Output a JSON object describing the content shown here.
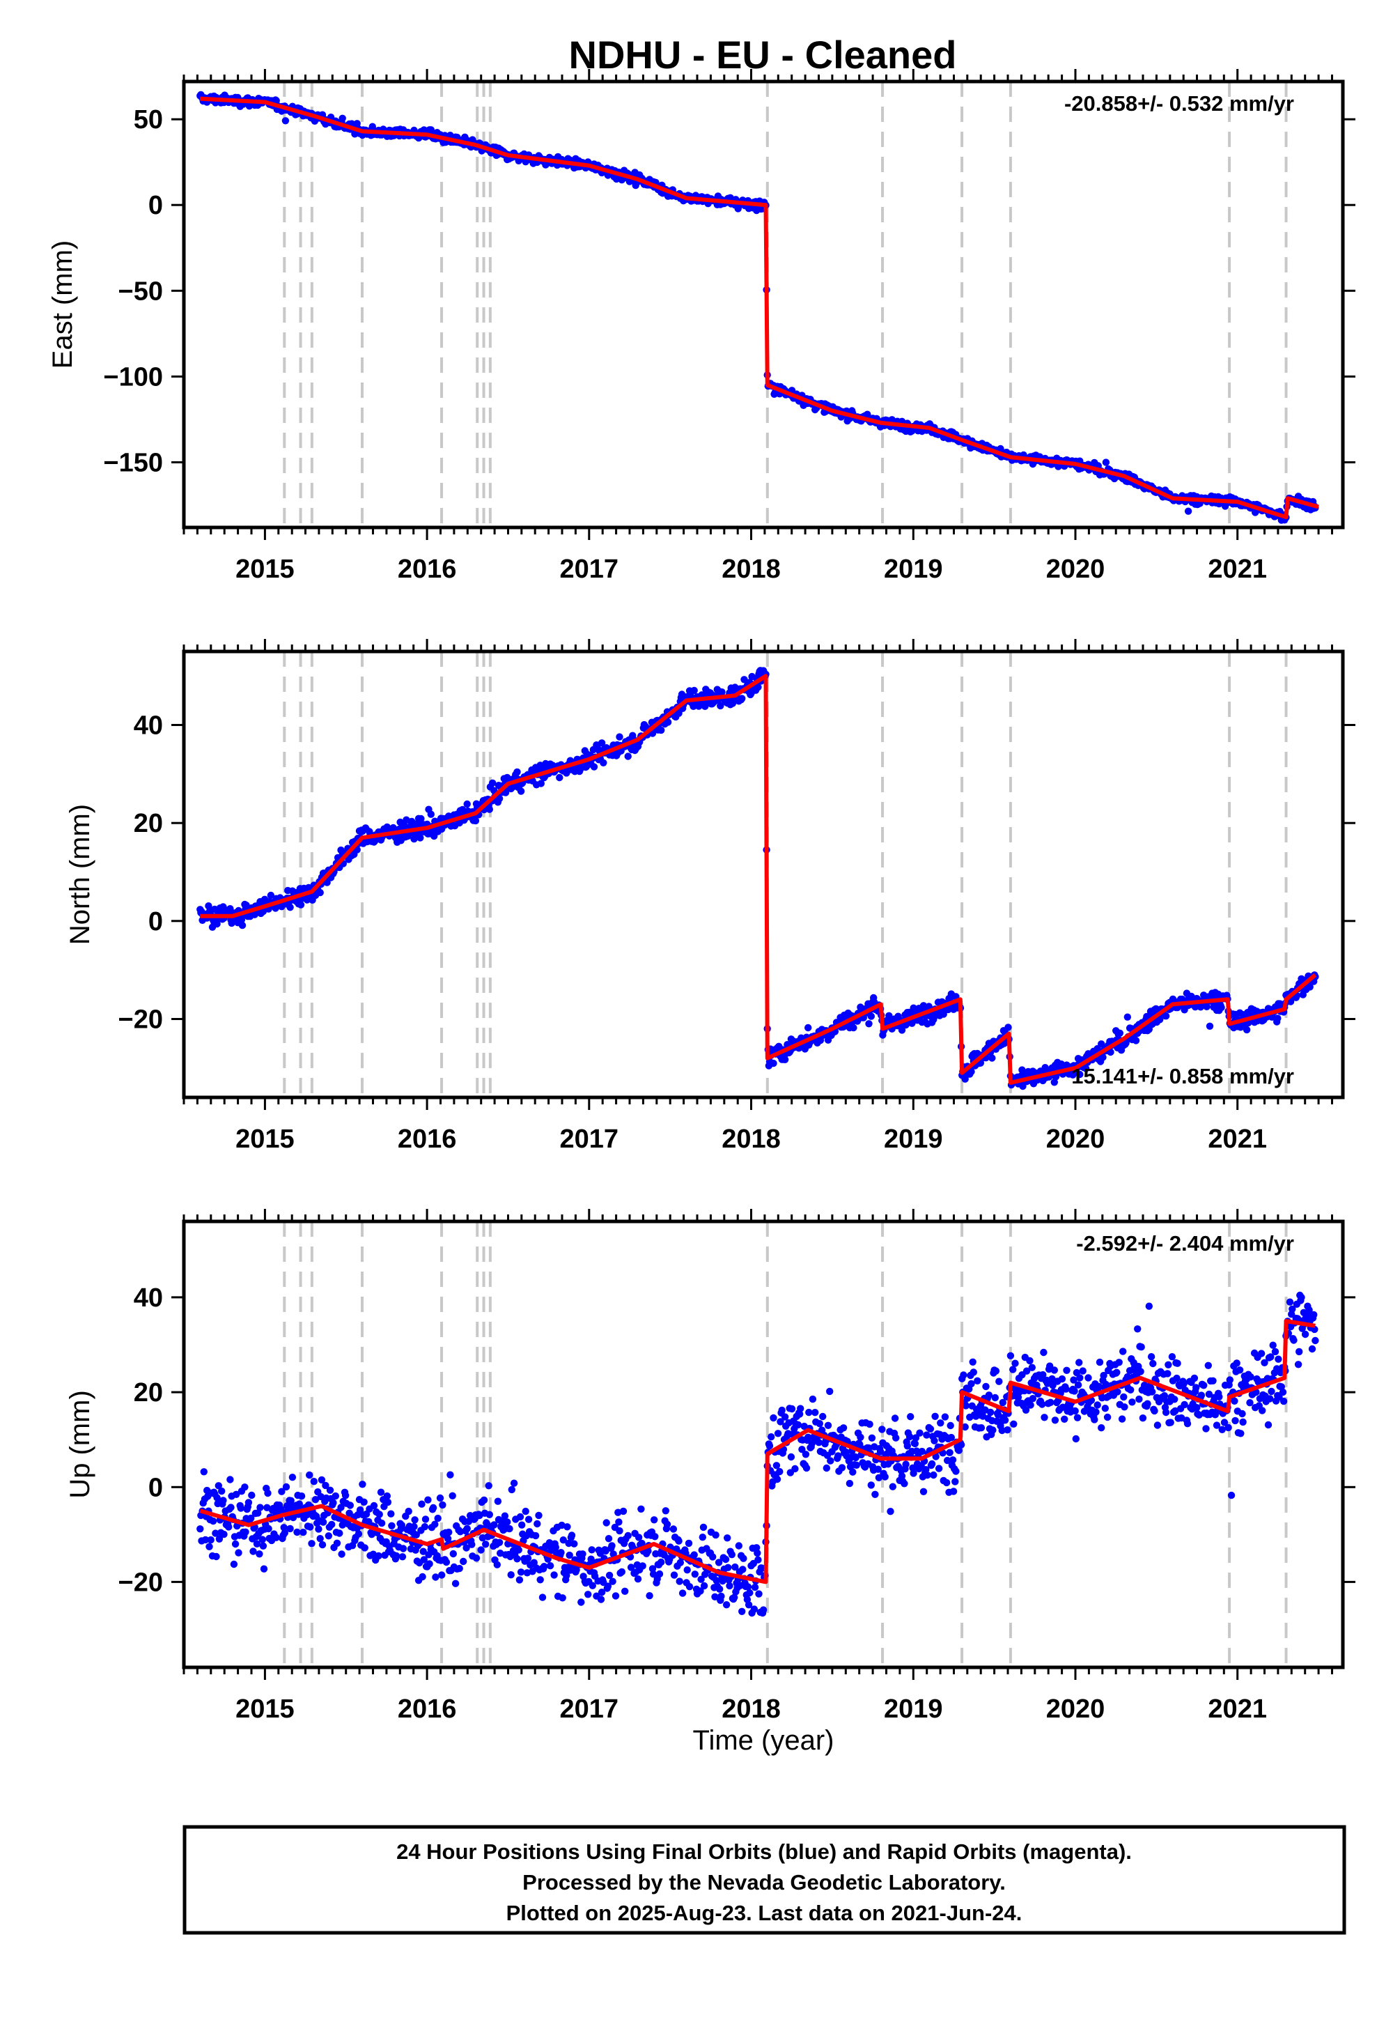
{
  "title": "NDHU  - EU - Cleaned",
  "colors": {
    "data": "#0000ff",
    "model": "#ff0000",
    "eventLine": "#c8c8c8",
    "frame": "#000000"
  },
  "chart_data": [
    {
      "type": "scatter",
      "ylabel": "East (mm)",
      "rate": "-20.858+/- 0.532 mm/yr",
      "rate_position": "top-right",
      "xlim": [
        2014.5,
        2021.65
      ],
      "ylim": [
        -188,
        72
      ],
      "yticks": [
        50,
        0,
        -50,
        -100,
        -150
      ],
      "xticks": [
        2015,
        2016,
        2017,
        2018,
        2019,
        2020,
        2021
      ],
      "event_lines": [
        2015.12,
        2015.22,
        2015.29,
        2015.6,
        2016.09,
        2016.31,
        2016.35,
        2016.39,
        2018.1,
        2018.81,
        2019.3,
        2019.6,
        2020.95,
        2021.3
      ],
      "noise": 2.2,
      "model": [
        [
          2014.6,
          62
        ],
        [
          2015.0,
          60
        ],
        [
          2015.3,
          52
        ],
        [
          2015.6,
          43
        ],
        [
          2016.0,
          41
        ],
        [
          2016.3,
          35
        ],
        [
          2016.5,
          29
        ],
        [
          2017.0,
          23
        ],
        [
          2017.3,
          15
        ],
        [
          2017.6,
          4
        ],
        [
          2018.09,
          0
        ],
        [
          2018.1,
          -105
        ],
        [
          2018.5,
          -120
        ],
        [
          2018.8,
          -127
        ],
        [
          2019.1,
          -130
        ],
        [
          2019.3,
          -137
        ],
        [
          2019.6,
          -147
        ],
        [
          2020.0,
          -151
        ],
        [
          2020.3,
          -158
        ],
        [
          2020.6,
          -171
        ],
        [
          2021.0,
          -173
        ],
        [
          2021.3,
          -182
        ],
        [
          2021.31,
          -171
        ],
        [
          2021.5,
          -176
        ]
      ],
      "x_end": 2021.48
    },
    {
      "type": "scatter",
      "ylabel": "North (mm)",
      "rate": "15.141+/- 0.858 mm/yr",
      "rate_position": "bottom-right",
      "xlim": [
        2014.5,
        2021.65
      ],
      "ylim": [
        -36,
        55
      ],
      "yticks": [
        40,
        20,
        0,
        -20
      ],
      "xticks": [
        2015,
        2016,
        2017,
        2018,
        2019,
        2020,
        2021
      ],
      "event_lines": [
        2015.12,
        2015.22,
        2015.29,
        2015.6,
        2016.09,
        2016.31,
        2016.35,
        2016.39,
        2018.1,
        2018.81,
        2019.3,
        2019.6,
        2020.95,
        2021.3
      ],
      "noise": 1.6,
      "model": [
        [
          2014.6,
          1
        ],
        [
          2014.8,
          1
        ],
        [
          2015.0,
          3
        ],
        [
          2015.29,
          6
        ],
        [
          2015.6,
          17
        ],
        [
          2016.0,
          19
        ],
        [
          2016.3,
          22
        ],
        [
          2016.5,
          28
        ],
        [
          2016.8,
          31
        ],
        [
          2017.0,
          33
        ],
        [
          2017.3,
          37
        ],
        [
          2017.6,
          45
        ],
        [
          2017.9,
          46
        ],
        [
          2018.09,
          50
        ],
        [
          2018.1,
          -28
        ],
        [
          2018.5,
          -22
        ],
        [
          2018.8,
          -17
        ],
        [
          2018.81,
          -22
        ],
        [
          2019.29,
          -16
        ],
        [
          2019.3,
          -31
        ],
        [
          2019.59,
          -23
        ],
        [
          2019.6,
          -33
        ],
        [
          2020.0,
          -30
        ],
        [
          2020.3,
          -24
        ],
        [
          2020.6,
          -17
        ],
        [
          2020.94,
          -16
        ],
        [
          2020.95,
          -21
        ],
        [
          2021.29,
          -18
        ],
        [
          2021.3,
          -16
        ],
        [
          2021.48,
          -11
        ]
      ],
      "x_end": 2021.48
    },
    {
      "type": "scatter",
      "ylabel": "Up (mm)",
      "xlabel": "Time (year)",
      "rate": "-2.592+/- 2.404 mm/yr",
      "rate_position": "top-right",
      "xlim": [
        2014.5,
        2021.65
      ],
      "ylim": [
        -38,
        56
      ],
      "yticks": [
        40,
        20,
        0,
        -20
      ],
      "xticks": [
        2015,
        2016,
        2017,
        2018,
        2019,
        2020,
        2021
      ],
      "event_lines": [
        2015.12,
        2015.22,
        2015.29,
        2015.6,
        2016.09,
        2016.31,
        2016.35,
        2016.39,
        2018.1,
        2018.81,
        2019.3,
        2019.6,
        2020.95,
        2021.3
      ],
      "noise": 6.5,
      "model": [
        [
          2014.6,
          -5
        ],
        [
          2014.9,
          -8
        ],
        [
          2015.1,
          -6
        ],
        [
          2015.35,
          -4
        ],
        [
          2015.6,
          -8
        ],
        [
          2016.0,
          -12
        ],
        [
          2016.09,
          -11
        ],
        [
          2016.1,
          -13
        ],
        [
          2016.35,
          -9
        ],
        [
          2016.8,
          -15
        ],
        [
          2017.0,
          -17
        ],
        [
          2017.4,
          -12
        ],
        [
          2017.8,
          -18
        ],
        [
          2018.09,
          -20
        ],
        [
          2018.1,
          7
        ],
        [
          2018.35,
          12
        ],
        [
          2018.8,
          6
        ],
        [
          2019.05,
          6
        ],
        [
          2019.29,
          10
        ],
        [
          2019.3,
          20
        ],
        [
          2019.59,
          16
        ],
        [
          2019.6,
          22
        ],
        [
          2020.0,
          18
        ],
        [
          2020.4,
          23
        ],
        [
          2020.94,
          16
        ],
        [
          2020.95,
          19
        ],
        [
          2021.29,
          23
        ],
        [
          2021.3,
          35
        ],
        [
          2021.48,
          34
        ]
      ],
      "x_end": 2021.48
    }
  ],
  "footer": {
    "line1": "24 Hour Positions Using Final Orbits (blue) and Rapid Orbits (magenta).",
    "line2": "Processed by the Nevada Geodetic Laboratory.",
    "line3": "Plotted on 2025-Aug-23. Last data on 2021-Jun-24."
  }
}
